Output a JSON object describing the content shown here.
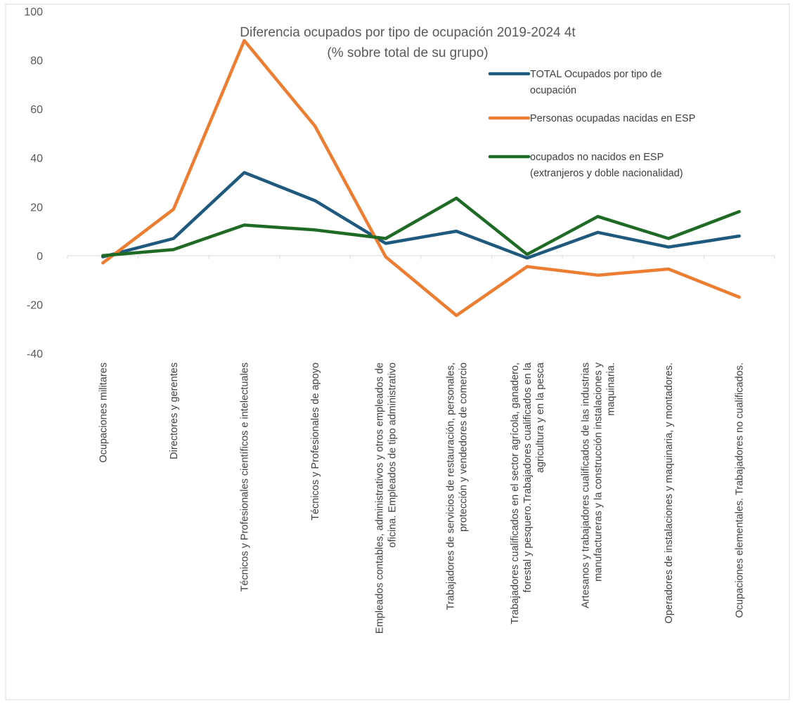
{
  "chart_data": {
    "type": "line",
    "title": [
      "Diferencia ocupados por tipo de ocupación 2019-2024 4t",
      "(% sobre total de su grupo)"
    ],
    "xlabel": "",
    "ylabel": "",
    "ylim": [
      -40,
      100
    ],
    "yticks": [
      "100",
      "80",
      "60",
      "40",
      "20",
      "0",
      "-20",
      "-40"
    ],
    "grid": false,
    "legend_position": "top-right",
    "categories": [
      [
        "Ocupaciones militares"
      ],
      [
        "Directores y gerentes"
      ],
      [
        "Técnicos y Profesionales científicos e intelectuales"
      ],
      [
        "Técnicos y Profesionales de apoyo"
      ],
      [
        "Empleados contables, administrativos y otros empleados de",
        "oficina. Empleados de tipo administrativo"
      ],
      [
        "Trabajadores de servicios de restauración, personales,",
        "protección y vendedores de comercio"
      ],
      [
        "Trabajadores cualificados en el sector agrícola, ganadero,",
        "forestal y pesquero.Trabajadores cualificados en la",
        "agricultura y en la pesca"
      ],
      [
        "Artesanos y trabajadores cualificados de las industrias",
        "manufactureras y la construcción instalaciones y",
        "maquinaria."
      ],
      [
        "Operadores de instalaciones y maquinaria, y montadores."
      ],
      [
        "Ocupaciones elementales. Trabajadores no cualificados."
      ]
    ],
    "series": [
      {
        "name": [
          "TOTAL Ocupados por tipo de",
          "ocupación"
        ],
        "color": "#1f5a7e",
        "values": [
          -0.5,
          7,
          34,
          22.5,
          5,
          10,
          -1,
          9.5,
          3.5,
          8
        ]
      },
      {
        "name": [
          "Personas ocupadas nacidas en ESP"
        ],
        "color": "#ed7d31",
        "values": [
          -3,
          19,
          88,
          53,
          -0.5,
          -24.5,
          -4.5,
          -8,
          -5.5,
          -17
        ]
      },
      {
        "name": [
          "ocupados no nacidos en ESP",
          "(extranjeros y doble nacionalidad)"
        ],
        "color": "#1f6b25",
        "values": [
          0,
          2.5,
          12.5,
          10.5,
          7,
          23.5,
          0.5,
          16,
          7,
          18
        ]
      }
    ]
  }
}
